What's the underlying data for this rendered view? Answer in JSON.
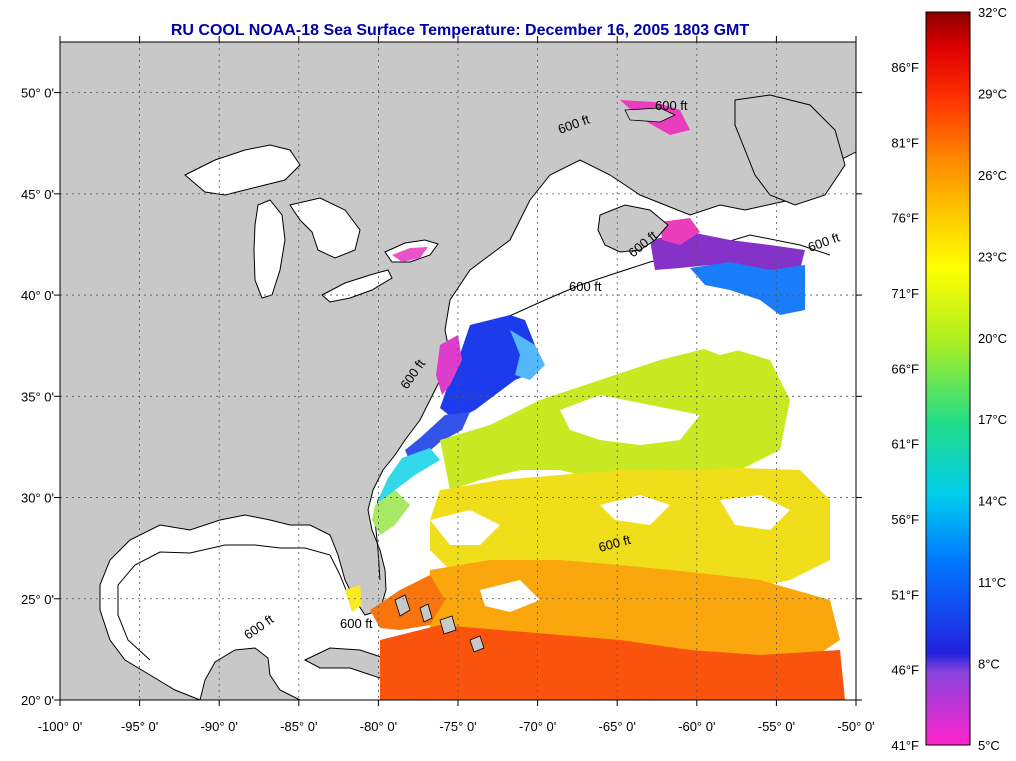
{
  "title": "RU COOL  NOAA-18  Sea Surface Temperature:  December 16, 2005 1803 GMT",
  "colors": {
    "land": "#c8c8c8",
    "ocean_no_data": "#ffffff",
    "title": "#0000aa"
  },
  "map": {
    "lon_range": [
      -100,
      -50
    ],
    "lat_range": [
      20,
      52.5
    ],
    "lon_ticks": [
      "-100° 0'",
      "-95° 0'",
      "-90° 0'",
      "-85° 0'",
      "-80° 0'",
      "-75° 0'",
      "-70° 0'",
      "-65° 0'",
      "-60° 0'",
      "-55° 0'",
      "-50° 0'"
    ],
    "lat_ticks": [
      "20° 0'",
      "25° 0'",
      "30° 0'",
      "35° 0'",
      "40° 0'",
      "45° 0'",
      "50° 0'"
    ],
    "isobath_label": "600 ft",
    "isobath_label_count": 9
  },
  "colorbar": {
    "celsius_labels": [
      "32°C",
      "29°C",
      "26°C",
      "23°C",
      "20°C",
      "17°C",
      "14°C",
      "11°C",
      "8°C",
      "5°C"
    ],
    "fahrenheit_labels": [
      "86°F",
      "81°F",
      "76°F",
      "71°F",
      "66°F",
      "61°F",
      "56°F",
      "51°F",
      "46°F",
      "41°F"
    ],
    "stops": [
      "#ff22cc",
      "#8844dd",
      "#2222dd",
      "#0077ff",
      "#00ccee",
      "#22dd88",
      "#aaee22",
      "#ffff00",
      "#ffcc00",
      "#ff8800",
      "#ff3300",
      "#dd0000",
      "#8b0000"
    ]
  }
}
